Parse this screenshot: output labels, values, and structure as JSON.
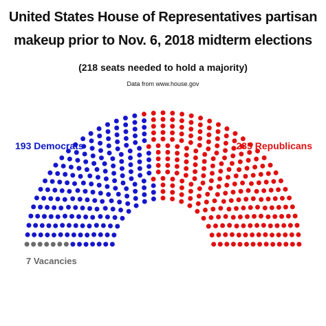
{
  "chart_data": {
    "type": "parliament",
    "title_line1": "United States House of Representatives partisan",
    "title_line2": "makeup prior to Nov. 6, 2018 midterm elections",
    "subtitle": "(218 seats needed to hold a majority)",
    "source": "Data from www.house.gov",
    "total_seats": 435,
    "majority": 218,
    "series": [
      {
        "name": "Democrats",
        "value": 193,
        "label": "193 Democrats",
        "color": "#1616cc"
      },
      {
        "name": "Republicans",
        "value": 235,
        "label": "235 Republicans",
        "color": "#e01010"
      },
      {
        "name": "Vacancies",
        "value": 7,
        "label": "7 Vacancies",
        "color": "#6b6b6b"
      }
    ]
  }
}
